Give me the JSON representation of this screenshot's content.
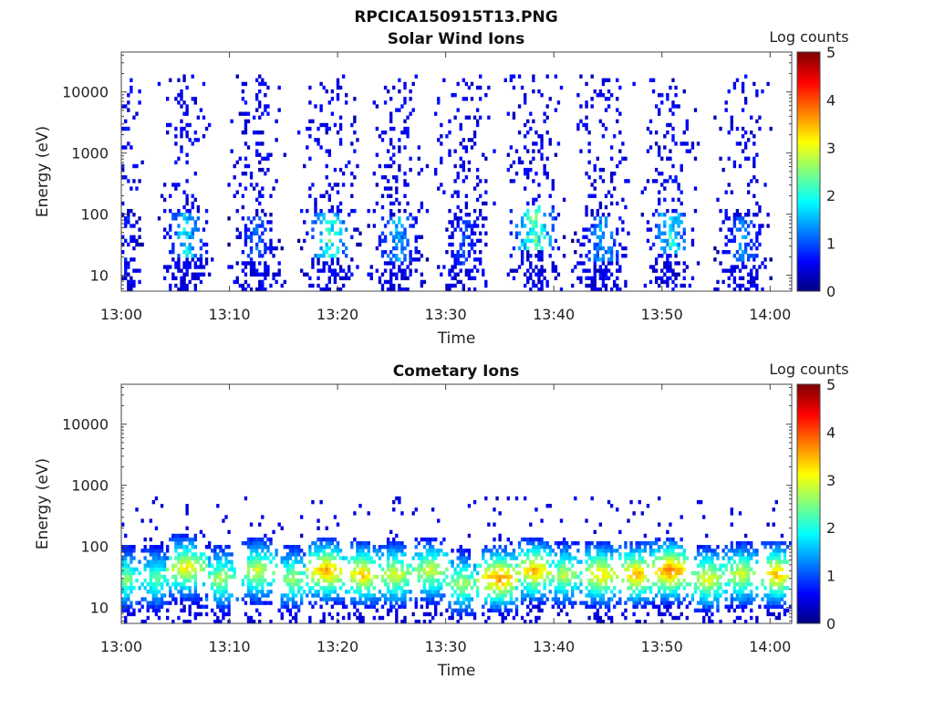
{
  "figure_title": "RPCICA150915T13.PNG",
  "chart_data": [
    {
      "type": "heatmap",
      "title": "Solar Wind Ions",
      "xlabel": "Time",
      "ylabel": "Energy (eV)",
      "y_scale": "log",
      "ylim": [
        5.5,
        45000
      ],
      "y_ticks": [
        10,
        100,
        1000,
        10000
      ],
      "y_tick_labels": [
        "10",
        "100",
        "1000",
        "10000"
      ],
      "xlim": [
        "13:00",
        "14:02"
      ],
      "x_ticks": [
        "13:00",
        "13:10",
        "13:20",
        "13:30",
        "13:40",
        "13:50",
        "14:00"
      ],
      "colorbar": {
        "label": "Log counts",
        "range": [
          0,
          5
        ],
        "ticks": [
          0,
          1,
          2,
          3,
          4,
          5
        ],
        "colormap": "jet"
      },
      "sweeps": [
        {
          "time": "13:00",
          "center_min": 0.6,
          "width_min": 1.6,
          "low_intensity": 1.0,
          "low_energy": 40,
          "spread_to": 20000
        },
        {
          "time": "13:06",
          "center_min": 6.0,
          "width_min": 2.8,
          "low_intensity": 2.2,
          "low_energy": 45,
          "spread_to": 20000
        },
        {
          "time": "13:12",
          "center_min": 12.5,
          "width_min": 2.8,
          "low_intensity": 1.4,
          "low_energy": 40,
          "spread_to": 20000
        },
        {
          "time": "13:19",
          "center_min": 19.3,
          "width_min": 3.0,
          "low_intensity": 2.6,
          "low_energy": 45,
          "spread_to": 20000
        },
        {
          "time": "13:25",
          "center_min": 25.5,
          "width_min": 3.0,
          "low_intensity": 1.8,
          "low_energy": 40,
          "spread_to": 20000
        },
        {
          "time": "13:32",
          "center_min": 31.8,
          "width_min": 2.8,
          "low_intensity": 1.2,
          "low_energy": 35,
          "spread_to": 20000
        },
        {
          "time": "13:38",
          "center_min": 38.2,
          "width_min": 3.0,
          "low_intensity": 3.0,
          "low_energy": 60,
          "spread_to": 20000
        },
        {
          "time": "13:44",
          "center_min": 44.6,
          "width_min": 3.0,
          "low_intensity": 1.8,
          "low_energy": 40,
          "spread_to": 20000
        },
        {
          "time": "13:51",
          "center_min": 50.8,
          "width_min": 2.8,
          "low_intensity": 2.4,
          "low_energy": 50,
          "spread_to": 20000
        },
        {
          "time": "13:57",
          "center_min": 57.5,
          "width_min": 2.8,
          "low_intensity": 1.6,
          "low_energy": 40,
          "spread_to": 20000
        }
      ]
    },
    {
      "type": "heatmap",
      "title": "Cometary Ions",
      "xlabel": "Time",
      "ylabel": "Energy (eV)",
      "y_scale": "log",
      "ylim": [
        5.5,
        45000
      ],
      "y_ticks": [
        10,
        100,
        1000,
        10000
      ],
      "y_tick_labels": [
        "10",
        "100",
        "1000",
        "10000"
      ],
      "xlim": [
        "13:00",
        "14:02"
      ],
      "x_ticks": [
        "13:00",
        "13:10",
        "13:20",
        "13:30",
        "13:40",
        "13:50",
        "14:00"
      ],
      "colorbar": {
        "label": "Log counts",
        "range": [
          0,
          5
        ],
        "ticks": [
          0,
          1,
          2,
          3,
          4,
          5
        ],
        "colormap": "jet"
      },
      "sweeps": [
        {
          "time": "13:00",
          "center_min": 0.4,
          "width_min": 1.4,
          "peak_intensity": 2.2,
          "peak_energy": 30
        },
        {
          "time": "13:03",
          "center_min": 3.2,
          "width_min": 1.6,
          "peak_intensity": 2.0,
          "peak_energy": 30
        },
        {
          "time": "13:06",
          "center_min": 6.0,
          "width_min": 2.2,
          "peak_intensity": 2.8,
          "peak_energy": 45
        },
        {
          "time": "13:09",
          "center_min": 9.2,
          "width_min": 1.6,
          "peak_intensity": 2.4,
          "peak_energy": 30
        },
        {
          "time": "13:12",
          "center_min": 12.6,
          "width_min": 1.8,
          "peak_intensity": 2.6,
          "peak_energy": 40
        },
        {
          "time": "13:16",
          "center_min": 15.8,
          "width_min": 1.4,
          "peak_intensity": 2.4,
          "peak_energy": 30
        },
        {
          "time": "13:19",
          "center_min": 19.0,
          "width_min": 2.0,
          "peak_intensity": 3.3,
          "peak_energy": 40
        },
        {
          "time": "13:22",
          "center_min": 22.3,
          "width_min": 1.8,
          "peak_intensity": 3.1,
          "peak_energy": 35
        },
        {
          "time": "13:25",
          "center_min": 25.3,
          "width_min": 1.8,
          "peak_intensity": 2.7,
          "peak_energy": 35
        },
        {
          "time": "13:29",
          "center_min": 28.6,
          "width_min": 2.0,
          "peak_intensity": 2.6,
          "peak_energy": 40
        },
        {
          "time": "13:32",
          "center_min": 31.5,
          "width_min": 1.6,
          "peak_intensity": 2.4,
          "peak_energy": 25
        },
        {
          "time": "13:35",
          "center_min": 35.0,
          "width_min": 2.2,
          "peak_intensity": 3.4,
          "peak_energy": 30
        },
        {
          "time": "13:38",
          "center_min": 38.2,
          "width_min": 1.8,
          "peak_intensity": 3.2,
          "peak_energy": 40
        },
        {
          "time": "13:41",
          "center_min": 41.0,
          "width_min": 1.6,
          "peak_intensity": 2.5,
          "peak_energy": 35
        },
        {
          "time": "13:44",
          "center_min": 44.3,
          "width_min": 2.0,
          "peak_intensity": 3.0,
          "peak_energy": 35
        },
        {
          "time": "13:47",
          "center_min": 47.6,
          "width_min": 1.8,
          "peak_intensity": 3.2,
          "peak_energy": 35
        },
        {
          "time": "13:51",
          "center_min": 50.8,
          "width_min": 2.0,
          "peak_intensity": 3.5,
          "peak_energy": 40
        },
        {
          "time": "13:54",
          "center_min": 54.2,
          "width_min": 1.8,
          "peak_intensity": 2.8,
          "peak_energy": 30
        },
        {
          "time": "13:57",
          "center_min": 57.3,
          "width_min": 1.8,
          "peak_intensity": 2.6,
          "peak_energy": 35
        },
        {
          "time": "14:01",
          "center_min": 60.6,
          "width_min": 1.6,
          "peak_intensity": 3.2,
          "peak_energy": 35
        }
      ]
    }
  ]
}
